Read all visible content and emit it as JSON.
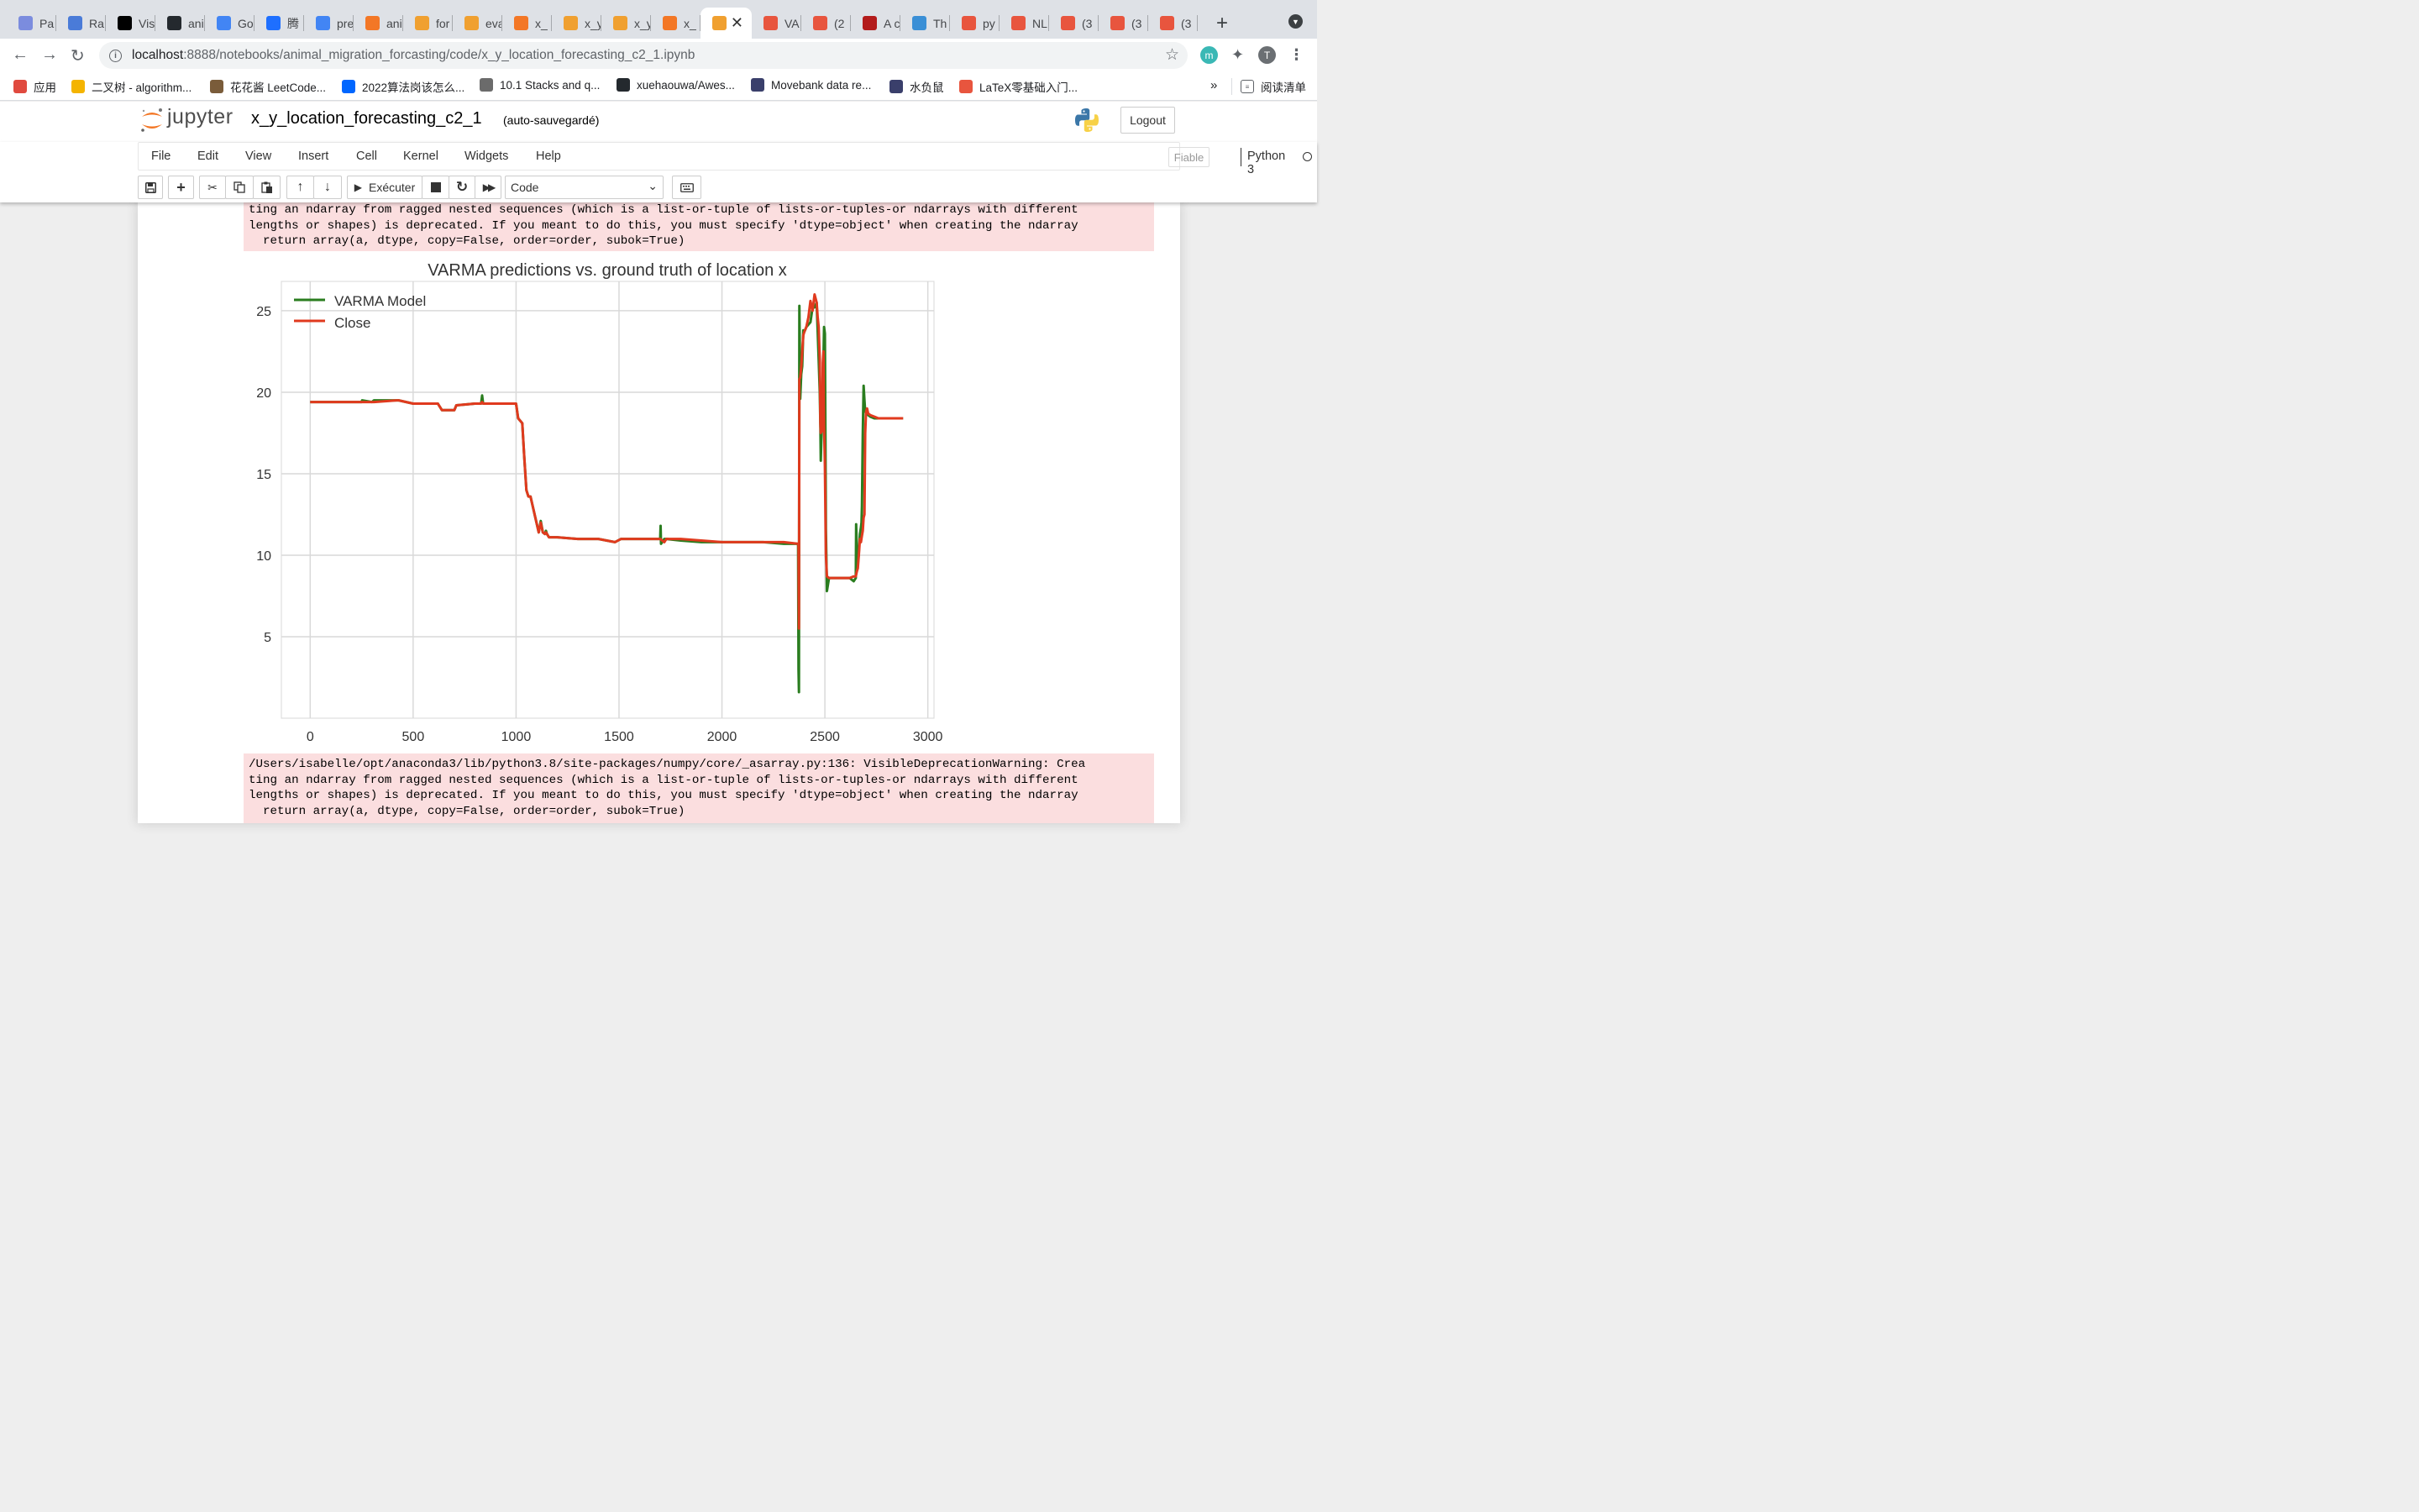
{
  "browser": {
    "tabs": [
      {
        "label": "Pa",
        "icon": "paperpal-icon",
        "color": "#7b8cde"
      },
      {
        "label": "Ra",
        "icon": "radar-icon",
        "color": "#4a7bd8"
      },
      {
        "label": "Vis",
        "icon": "video-icon",
        "color": "#000000"
      },
      {
        "label": "ani",
        "icon": "github-icon",
        "color": "#24292e"
      },
      {
        "label": "Go",
        "icon": "google-translate-icon",
        "color": "#4285f4"
      },
      {
        "label": "腾",
        "icon": "tencent-icon",
        "color": "#1e6fff"
      },
      {
        "label": "pre",
        "icon": "google-docs-icon",
        "color": "#4285f4"
      },
      {
        "label": "ani",
        "icon": "jupyter-icon",
        "color": "#f37726"
      },
      {
        "label": "for",
        "icon": "notebook-icon",
        "color": "#f0a030"
      },
      {
        "label": "eva",
        "icon": "notebook-icon",
        "color": "#f0a030"
      },
      {
        "label": "x_",
        "icon": "hourglass-icon",
        "color": "#f37726"
      },
      {
        "label": "x_y",
        "icon": "notebook-icon",
        "color": "#f0a030"
      },
      {
        "label": "x_y",
        "icon": "notebook-icon",
        "color": "#f0a030"
      },
      {
        "label": "x_",
        "icon": "hourglass-icon",
        "color": "#f37726"
      },
      {
        "label": "",
        "icon": "notebook-icon",
        "color": "#f0a030",
        "active": true
      },
      {
        "label": "VA",
        "icon": "csdn-icon",
        "color": "#e8553e"
      },
      {
        "label": "(2",
        "icon": "csdn-icon",
        "color": "#e8553e"
      },
      {
        "label": "A c",
        "icon": "scholar-icon",
        "color": "#b31b1b"
      },
      {
        "label": "Th",
        "icon": "globe-icon",
        "color": "#3a8fd6"
      },
      {
        "label": "py",
        "icon": "csdn-icon",
        "color": "#e8553e"
      },
      {
        "label": "NL",
        "icon": "csdn-icon",
        "color": "#e8553e"
      },
      {
        "label": "(3",
        "icon": "csdn-icon",
        "color": "#e8553e"
      },
      {
        "label": "(3",
        "icon": "csdn-icon",
        "color": "#e8553e"
      },
      {
        "label": "(3",
        "icon": "csdn-icon",
        "color": "#e8553e"
      }
    ],
    "close_glyph": "✕",
    "new_tab_glyph": "+",
    "url_host": "localhost",
    "url_rest": ":8888/notebooks/animal_migration_forcasting/code/x_y_location_forecasting_c2_1.ipynb",
    "profile_initial": "T",
    "ext_initial": "m",
    "bookmarks": [
      {
        "label": "应用",
        "icon": "apps-grid-icon",
        "color": "#e04a3f"
      },
      {
        "label": "二叉树 - algorithm...",
        "icon": "emoji-icon",
        "color": "#f4b400"
      },
      {
        "label": "花花酱 LeetCode...",
        "icon": "avatar-icon",
        "color": "#7a5c3a"
      },
      {
        "label": "2022算法岗该怎么...",
        "icon": "zhihu-icon",
        "color": "#0066ff"
      },
      {
        "label": "10.1 Stacks and q...",
        "icon": "w-icon",
        "color": "#6b6b6b"
      },
      {
        "label": "xuehaouwa/Awes...",
        "icon": "github-icon",
        "color": "#24292e"
      },
      {
        "label": "Movebank data re...",
        "icon": "paw-icon",
        "color": "#3a3f6b"
      },
      {
        "label": "水负鼠",
        "icon": "paw-icon",
        "color": "#3a3f6b"
      },
      {
        "label": "LaTeX零基础入门...",
        "icon": "jian-icon",
        "color": "#e8553e"
      }
    ],
    "bookmarks_more": "»",
    "reading_list": "阅读清单"
  },
  "jupyter": {
    "logo_text": "jupyter",
    "notebook_title": "x_y_location_forecasting_c2_1",
    "autosave": "(auto-sauvegardé)",
    "logout": "Logout",
    "menu": [
      "File",
      "Edit",
      "View",
      "Insert",
      "Cell",
      "Kernel",
      "Widgets",
      "Help"
    ],
    "trusted": "Fiable",
    "kernel": "Python 3",
    "run_label": "Exécuter",
    "cell_type": "Code"
  },
  "output": {
    "stderr_top": "ting an ndarray from ragged nested sequences (which is a list-or-tuple of lists-or-tuples-or ndarrays with different\nlengths or shapes) is deprecated. If you meant to do this, you must specify 'dtype=object' when creating the ndarray\n  return array(a, dtype, copy=False, order=order, subok=True)",
    "stderr_bottom": "/Users/isabelle/opt/anaconda3/lib/python3.8/site-packages/numpy/core/_asarray.py:136: VisibleDeprecationWarning: Crea\nting an ndarray from ragged nested sequences (which is a list-or-tuple of lists-or-tuples-or ndarrays with different\nlengths or shapes) is deprecated. If you meant to do this, you must specify 'dtype=object' when creating the ndarray\n  return array(a, dtype, copy=False, order=order, subok=True)"
  },
  "chart_data": {
    "type": "line",
    "title": "VARMA predictions vs. ground truth of location x",
    "xlabel": "",
    "ylabel": "",
    "xlim": [
      -140,
      3030
    ],
    "ylim": [
      0,
      26.8
    ],
    "xticks": [
      0,
      500,
      1000,
      1500,
      2000,
      2500,
      3000
    ],
    "yticks": [
      5,
      10,
      15,
      20,
      25
    ],
    "grid": true,
    "legend_position": "upper-left",
    "series": [
      {
        "name": "VARMA Model",
        "color": "#2a7d1f",
        "x": [
          0,
          250,
          252,
          300,
          310,
          420,
          430,
          500,
          620,
          640,
          700,
          710,
          800,
          830,
          835,
          840,
          900,
          960,
          1000,
          1010,
          1030,
          1040,
          1050,
          1060,
          1070,
          1110,
          1120,
          1130,
          1140,
          1145,
          1150,
          1160,
          1200,
          1300,
          1400,
          1480,
          1510,
          1600,
          1700,
          1702,
          1704,
          1720,
          1730,
          1800,
          1900,
          2000,
          2100,
          2200,
          2300,
          2370,
          2372,
          2374,
          2376,
          2378,
          2380,
          2385,
          2390,
          2395,
          2400,
          2410,
          2430,
          2440,
          2450,
          2460,
          2470,
          2475,
          2478,
          2480,
          2485,
          2490,
          2493,
          2496,
          2500,
          2505,
          2510,
          2520,
          2540,
          2560,
          2580,
          2600,
          2620,
          2640,
          2650,
          2652,
          2654,
          2656,
          2660,
          2665,
          2670,
          2675,
          2678,
          2680,
          2684,
          2688,
          2692,
          2696,
          2700,
          2705,
          2710,
          2720,
          2740,
          2760,
          2800,
          2880
        ],
        "y": [
          19.4,
          19.4,
          19.5,
          19.4,
          19.5,
          19.5,
          19.5,
          19.3,
          19.3,
          18.9,
          18.9,
          19.2,
          19.3,
          19.3,
          19.8,
          19.3,
          19.3,
          19.3,
          19.3,
          18.4,
          18.1,
          16.0,
          14.0,
          13.6,
          13.6,
          11.4,
          12.1,
          11.4,
          11.3,
          11.5,
          11.3,
          11.1,
          11.1,
          11.0,
          11.0,
          10.8,
          11.0,
          11.0,
          11.0,
          11.8,
          10.7,
          11.0,
          11.0,
          10.9,
          10.8,
          10.8,
          10.8,
          10.8,
          10.7,
          10.7,
          3.0,
          1.6,
          25.3,
          22.8,
          19.6,
          21.1,
          21.6,
          23.8,
          23.7,
          24.0,
          24.3,
          25.2,
          25.2,
          25.5,
          22.0,
          20.0,
          18.0,
          15.8,
          18.0,
          21.3,
          22.0,
          24.0,
          23.6,
          11.6,
          7.8,
          8.6,
          8.6,
          8.6,
          8.6,
          8.6,
          8.6,
          8.4,
          8.6,
          11.9,
          11.0,
          9.4,
          9.4,
          10.2,
          11.3,
          11.7,
          12.0,
          13.0,
          17.4,
          20.4,
          19.5,
          18.8,
          18.8,
          18.7,
          18.6,
          18.5,
          18.4,
          18.4,
          18.4,
          18.4
        ],
        "stroke_width": 3
      },
      {
        "name": "Close",
        "color": "#e03a1e",
        "x": [
          0,
          250,
          252,
          300,
          310,
          420,
          430,
          500,
          620,
          640,
          700,
          710,
          800,
          830,
          835,
          840,
          900,
          960,
          1000,
          1010,
          1030,
          1040,
          1050,
          1060,
          1070,
          1110,
          1120,
          1130,
          1140,
          1145,
          1150,
          1160,
          1200,
          1300,
          1400,
          1480,
          1510,
          1600,
          1700,
          1720,
          1730,
          1800,
          1900,
          2000,
          2100,
          2200,
          2300,
          2370,
          2372,
          2374,
          2376,
          2380,
          2385,
          2390,
          2395,
          2400,
          2410,
          2420,
          2430,
          2440,
          2450,
          2460,
          2465,
          2470,
          2475,
          2478,
          2480,
          2483,
          2486,
          2490,
          2493,
          2496,
          2500,
          2505,
          2510,
          2520,
          2540,
          2560,
          2580,
          2600,
          2620,
          2640,
          2650,
          2655,
          2660,
          2665,
          2670,
          2675,
          2680,
          2684,
          2688,
          2692,
          2696,
          2700,
          2705,
          2710,
          2720,
          2740,
          2760,
          2800,
          2880
        ],
        "y": [
          19.4,
          19.4,
          19.4,
          19.4,
          19.4,
          19.5,
          19.5,
          19.3,
          19.3,
          18.9,
          18.9,
          19.2,
          19.3,
          19.3,
          19.4,
          19.3,
          19.3,
          19.3,
          19.3,
          18.4,
          18.1,
          16.0,
          14.0,
          13.6,
          13.6,
          11.4,
          12.0,
          11.4,
          11.3,
          11.4,
          11.3,
          11.1,
          11.1,
          11.0,
          11.0,
          10.8,
          11.0,
          11.0,
          11.0,
          10.8,
          11.0,
          11.0,
          10.9,
          10.8,
          10.8,
          10.8,
          10.8,
          10.7,
          10.7,
          5.5,
          20.8,
          20.9,
          21.5,
          22.5,
          23.5,
          23.7,
          24.0,
          24.6,
          25.6,
          25.0,
          26.0,
          25.5,
          24.6,
          24.0,
          22.0,
          18.1,
          17.5,
          17.8,
          17.6,
          21.8,
          22.5,
          18.0,
          15.5,
          10.0,
          8.7,
          8.6,
          8.6,
          8.6,
          8.6,
          8.6,
          8.6,
          8.7,
          8.7,
          9.0,
          9.2,
          10.0,
          11.0,
          10.8,
          11.2,
          11.5,
          12.3,
          12.5,
          17.5,
          18.8,
          19.0,
          18.7,
          18.6,
          18.5,
          18.4,
          18.4,
          18.4
        ],
        "stroke_width": 3
      }
    ]
  }
}
